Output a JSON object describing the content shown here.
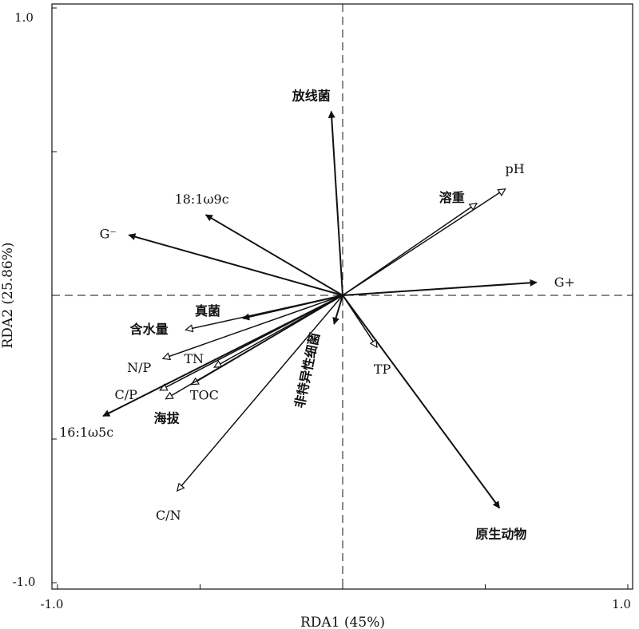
{
  "chart_data": {
    "type": "scatter",
    "subtype": "rda-biplot",
    "xlabel": "RDA1 (45%)",
    "ylabel": "RDA2 (25.86%)",
    "xlim": [
      -1.0,
      1.0
    ],
    "ylim": [
      -1.0,
      1.0
    ],
    "xticks": [
      -1.0,
      -0.5,
      0,
      0.5,
      1.0
    ],
    "yticks": [
      -1.0,
      -0.5,
      0,
      0.5,
      1.0
    ],
    "x_tick_labels": [
      "-1.0",
      "1.0"
    ],
    "y_tick_labels": [
      "1.0",
      "-1.0"
    ],
    "zero_lines": "dashed",
    "grid": false,
    "legend": "none",
    "response_vectors": [
      {
        "name": "放线菌",
        "x": -0.04,
        "y": 0.64,
        "head": "filled"
      },
      {
        "name": "18:1ω9c",
        "x": -0.48,
        "y": 0.28,
        "head": "filled"
      },
      {
        "name": "G⁻",
        "x": -0.75,
        "y": 0.21,
        "head": "filled"
      },
      {
        "name": "G+",
        "x": 0.68,
        "y": 0.045,
        "head": "filled"
      },
      {
        "name": "真菌",
        "x": -0.35,
        "y": -0.08,
        "head": "filled"
      },
      {
        "name": "16:1ω5c",
        "x": -0.84,
        "y": -0.42,
        "head": "filled"
      },
      {
        "name": "非特异性细菌",
        "x": -0.03,
        "y": -0.1,
        "head": "filled"
      },
      {
        "name": "原生动物",
        "x": 0.55,
        "y": -0.74,
        "head": "filled"
      }
    ],
    "environment_vectors": [
      {
        "name": "pH",
        "x": 0.57,
        "y": 0.37,
        "head": "open"
      },
      {
        "name": "溶重",
        "x": 0.47,
        "y": 0.32,
        "head": "open"
      },
      {
        "name": "含水量",
        "x": -0.55,
        "y": -0.12,
        "head": "open"
      },
      {
        "name": "N/P",
        "x": -0.63,
        "y": -0.22,
        "head": "open"
      },
      {
        "name": "TN",
        "x": -0.45,
        "y": -0.25,
        "head": "open"
      },
      {
        "name": "C/P",
        "x": -0.64,
        "y": -0.33,
        "head": "open"
      },
      {
        "name": "TOC",
        "x": -0.53,
        "y": -0.31,
        "head": "open"
      },
      {
        "name": "海拔",
        "x": -0.62,
        "y": -0.36,
        "head": "open"
      },
      {
        "name": "TP",
        "x": 0.12,
        "y": -0.18,
        "head": "open"
      },
      {
        "name": "C/N",
        "x": -0.58,
        "y": -0.68,
        "head": "open"
      }
    ]
  }
}
